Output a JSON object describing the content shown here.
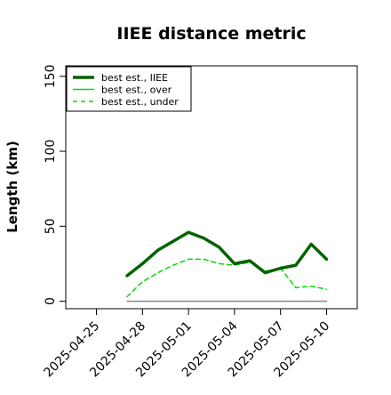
{
  "chart_data": {
    "type": "line",
    "title": "IIEE distance metric",
    "xlabel": "",
    "ylabel": "Length (km)",
    "x_ticks": [
      "2025-04-25",
      "2025-04-28",
      "2025-05-01",
      "2025-05-04",
      "2025-05-07",
      "2025-05-10"
    ],
    "y_ticks": [
      0,
      50,
      100,
      150
    ],
    "xlim": [
      "2025-04-23",
      "2025-05-12"
    ],
    "ylim": [
      -5,
      157
    ],
    "grid": false,
    "legend_position": "top-left",
    "series": [
      {
        "name": "best est., IIEE",
        "color": "#006400",
        "style": "solid-thick",
        "x": [
          "2025-04-27",
          "2025-04-28",
          "2025-04-29",
          "2025-04-30",
          "2025-05-01",
          "2025-05-02",
          "2025-05-03",
          "2025-05-04",
          "2025-05-05",
          "2025-05-06",
          "2025-05-07",
          "2025-05-08",
          "2025-05-09",
          "2025-05-10"
        ],
        "y": [
          17,
          25,
          34,
          40,
          46,
          42,
          36,
          25,
          27,
          19,
          22,
          24,
          38,
          28
        ]
      },
      {
        "name": "best est., over",
        "color": "#00dd00",
        "style": "solid",
        "x": [
          "2025-04-27",
          "2025-04-28",
          "2025-04-29",
          "2025-04-30",
          "2025-05-01",
          "2025-05-02",
          "2025-05-03",
          "2025-05-04",
          "2025-05-05",
          "2025-05-06",
          "2025-05-07",
          "2025-05-08",
          "2025-05-09",
          "2025-05-10"
        ],
        "y": [
          0,
          0,
          0,
          0,
          0,
          0,
          0,
          0,
          0,
          0,
          0,
          0,
          0,
          0
        ]
      },
      {
        "name": "best est., under",
        "color": "#00dd00",
        "style": "dashed",
        "x": [
          "2025-04-27",
          "2025-04-28",
          "2025-04-29",
          "2025-04-30",
          "2025-05-01",
          "2025-05-02",
          "2025-05-03",
          "2025-05-04",
          "2025-05-05",
          "2025-05-06",
          "2025-05-07",
          "2025-05-08",
          "2025-05-09",
          "2025-05-10"
        ],
        "y": [
          3,
          13,
          19,
          24,
          28,
          28,
          25,
          24,
          26,
          20,
          22,
          9,
          10,
          8
        ]
      }
    ]
  }
}
